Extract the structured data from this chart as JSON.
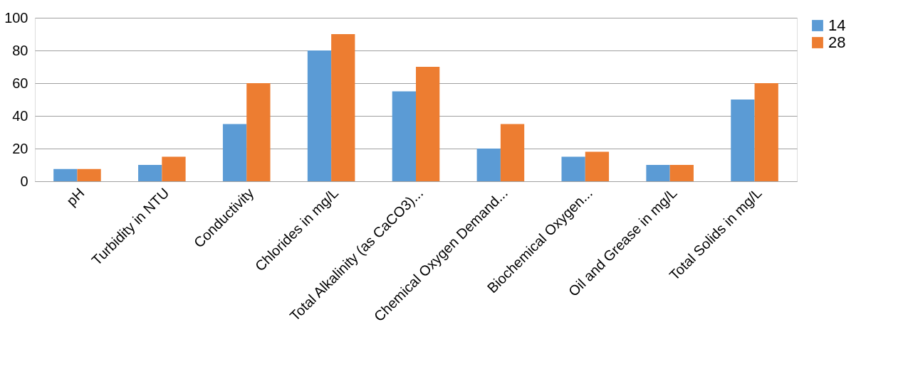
{
  "chart_data": {
    "type": "bar",
    "categories": [
      "pH",
      "Turbidity in NTU",
      "Conductivity",
      "Chlorides in mg/L",
      "Total Alkalinity (as CaCO3)...",
      "Chemical Oxygen Demand...",
      "Biochemical Oxygen...",
      "Oil and Grease in mg/L",
      "Total Solids in mg/L"
    ],
    "series": [
      {
        "name": "14",
        "color": "#5b9bd5",
        "values": [
          7.5,
          10,
          35,
          80,
          55,
          20,
          15,
          10,
          50
        ]
      },
      {
        "name": "28",
        "color": "#ed7d31",
        "values": [
          7.5,
          15,
          60,
          90,
          70,
          35,
          18,
          10,
          60
        ]
      }
    ],
    "ylim": [
      0,
      100
    ],
    "yticks": [
      0,
      20,
      40,
      60,
      80,
      100
    ],
    "grid": "y",
    "legend": "right"
  }
}
